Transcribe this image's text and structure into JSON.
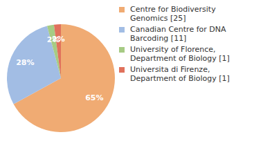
{
  "chart_data": {
    "type": "pie",
    "categories": [
      "Centre for Biodiversity Genomics [25]",
      "Canadian Centre for DNA Barcoding [11]",
      "University of Florence, Department of Biology [1]",
      "Universita di Firenze, Department of Biology [1]"
    ],
    "values": [
      65,
      28,
      2,
      2
    ],
    "value_labels": [
      "65%",
      "28%",
      "2%",
      "2%"
    ],
    "colors": [
      "#f0ab73",
      "#a2bde4",
      "#a6cb84",
      "#e0715c"
    ],
    "data_labels": true,
    "legend": "upper right"
  }
}
